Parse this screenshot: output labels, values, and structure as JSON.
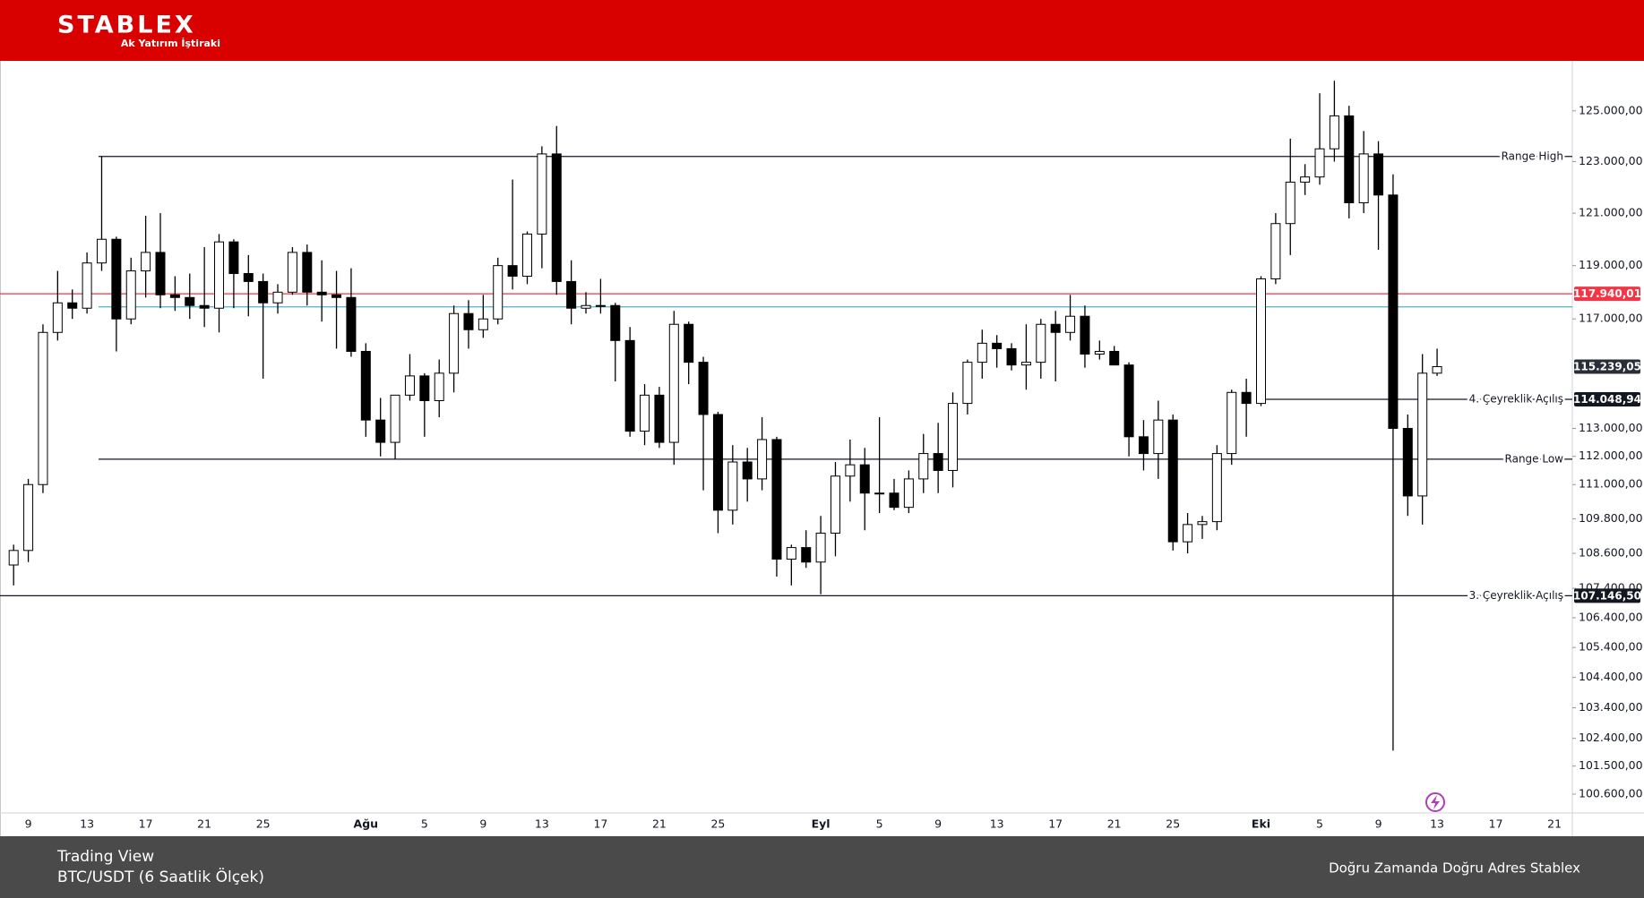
{
  "header": {
    "logo": "STABLEX",
    "tagline": "Ak Yatırım İştiraki"
  },
  "footer": {
    "source": "Trading View",
    "instrument": "BTC/USDT (6 Saatlik Ölçek)",
    "slogan": "Doğru Zamanda Doğru Adres Stablex"
  },
  "chart_data": {
    "type": "candlestick",
    "log_scale": true,
    "grid": false,
    "categories": [
      null,
      "9",
      null,
      null,
      null,
      "13",
      null,
      null,
      null,
      "17",
      null,
      null,
      null,
      "21",
      null,
      null,
      null,
      "25",
      null,
      null,
      null,
      null,
      null,
      null,
      "Ağu",
      null,
      null,
      null,
      "5",
      null,
      null,
      null,
      "9",
      null,
      null,
      null,
      "13",
      null,
      null,
      null,
      "17",
      null,
      null,
      null,
      "21",
      null,
      null,
      null,
      "25",
      null,
      null,
      null,
      null,
      null,
      null,
      "Eyl",
      null,
      null,
      null,
      "5",
      null,
      null,
      null,
      "9",
      null,
      null,
      null,
      "13",
      null,
      null,
      null,
      "17",
      null,
      null,
      null,
      "21",
      null,
      null,
      null,
      "25",
      null,
      null,
      null,
      null,
      null,
      "Eki",
      null,
      null,
      null,
      "5",
      null,
      null,
      null,
      "9",
      null,
      null,
      null,
      "13",
      null,
      null,
      null,
      "17",
      null,
      null,
      null,
      "21",
      null
    ],
    "open": [
      108200,
      108700,
      111000,
      116500,
      117600,
      117400,
      119100,
      120000,
      117000,
      118800,
      119500,
      117900,
      117800,
      117500,
      117400,
      119900,
      118700,
      118400,
      117600,
      118000,
      119500,
      118000,
      117900,
      117800,
      115800,
      113300,
      112500,
      114200,
      114900,
      114000,
      115000,
      117200,
      116600,
      117000,
      119000,
      118600,
      120200,
      123300,
      118400,
      117400,
      117500,
      117500,
      116200,
      112900,
      114200,
      112500,
      116800,
      115400,
      113500,
      110100,
      111800,
      111200,
      112600,
      108400,
      108800,
      108300,
      109300,
      111300,
      111700,
      110700,
      110700,
      110200,
      111200,
      112100,
      111500,
      113900,
      115400,
      116100,
      115900,
      115300,
      115400,
      116800,
      116500,
      117100,
      115700,
      115800,
      115300,
      112700,
      112100,
      113300,
      109000,
      109600,
      109700,
      112100,
      114300,
      113900,
      118500,
      120600,
      122200,
      122400,
      123500,
      124800,
      121400,
      123300,
      121700,
      113000,
      110600,
      115000,
      null,
      null,
      null,
      null,
      null,
      null,
      null,
      null,
      null
    ],
    "high": [
      108900,
      111200,
      116800,
      118800,
      118100,
      119500,
      123200,
      120100,
      119300,
      120900,
      121000,
      118600,
      118700,
      119700,
      120200,
      120000,
      119400,
      118700,
      118300,
      119700,
      119800,
      119200,
      118800,
      118900,
      116100,
      114100,
      114200,
      115700,
      115000,
      115500,
      117500,
      117700,
      117900,
      119300,
      122300,
      120300,
      123600,
      124400,
      119200,
      118000,
      118500,
      117600,
      116700,
      114600,
      114500,
      117300,
      116900,
      115600,
      113600,
      112400,
      112300,
      113400,
      112700,
      108900,
      109400,
      109900,
      111800,
      112600,
      112300,
      113400,
      111200,
      111500,
      112800,
      113200,
      114300,
      115500,
      116600,
      116400,
      116100,
      116800,
      117000,
      117300,
      117900,
      117500,
      116200,
      116000,
      115400,
      113300,
      114000,
      113500,
      110000,
      109900,
      112400,
      114400,
      114800,
      118600,
      121000,
      123900,
      122900,
      125700,
      126200,
      125200,
      124200,
      123800,
      122500,
      113500,
      115700,
      115900,
      null,
      null,
      null,
      null,
      null,
      null,
      null,
      null,
      null
    ],
    "low": [
      107500,
      108300,
      110700,
      116200,
      117000,
      117200,
      118800,
      115800,
      116800,
      117800,
      117400,
      117300,
      117000,
      116700,
      116500,
      117400,
      117100,
      114800,
      117200,
      117900,
      117500,
      116900,
      115900,
      115600,
      112700,
      112000,
      111900,
      114000,
      112700,
      113400,
      114300,
      115900,
      116300,
      116800,
      118100,
      118300,
      118900,
      117900,
      116800,
      117200,
      117200,
      114700,
      112700,
      112400,
      112300,
      111700,
      114600,
      110800,
      109300,
      109600,
      110400,
      110800,
      107800,
      107500,
      108100,
      107200,
      108500,
      110400,
      109400,
      110000,
      110100,
      110000,
      110700,
      110700,
      110900,
      113500,
      114800,
      115200,
      115100,
      114400,
      114800,
      114700,
      116200,
      115200,
      115500,
      115300,
      112000,
      111500,
      111200,
      108700,
      108600,
      109100,
      109400,
      111700,
      112700,
      113800,
      118300,
      119400,
      121700,
      122100,
      123000,
      120800,
      121000,
      119600,
      102000,
      109900,
      109600,
      114900,
      null,
      null,
      null,
      null,
      null,
      null,
      null,
      null,
      null
    ],
    "close": [
      108700,
      111000,
      116500,
      117600,
      117400,
      119100,
      120000,
      117000,
      118800,
      119500,
      117900,
      117800,
      117500,
      117400,
      119900,
      118700,
      118400,
      117600,
      118000,
      119500,
      118000,
      117900,
      117800,
      115800,
      113300,
      112500,
      114200,
      114900,
      114000,
      115000,
      117200,
      116600,
      117000,
      119000,
      118600,
      120200,
      123300,
      118400,
      117400,
      117500,
      117500,
      116200,
      112900,
      114200,
      112500,
      116800,
      115400,
      113500,
      110100,
      111800,
      111200,
      112600,
      108400,
      108800,
      108300,
      109300,
      111300,
      111700,
      110700,
      110700,
      110200,
      111200,
      112100,
      111500,
      113900,
      115400,
      116100,
      115900,
      115300,
      115400,
      116800,
      116500,
      117100,
      115700,
      115800,
      115300,
      112700,
      112100,
      113300,
      109000,
      109600,
      109700,
      112100,
      114300,
      113900,
      118500,
      120600,
      122200,
      122400,
      123500,
      124800,
      121400,
      123300,
      121700,
      113000,
      110600,
      115000,
      115239.05,
      null,
      null,
      null,
      null,
      null,
      null,
      null,
      null,
      null
    ],
    "ylim": [
      100000,
      127000
    ],
    "yticks": [
      {
        "value": 100600,
        "label": "100.600,00"
      },
      {
        "value": 101500,
        "label": "101.500,00"
      },
      {
        "value": 102400,
        "label": "102.400,00"
      },
      {
        "value": 103400,
        "label": "103.400,00"
      },
      {
        "value": 104400,
        "label": "104.400,00"
      },
      {
        "value": 105400,
        "label": "105.400,00"
      },
      {
        "value": 106400,
        "label": "106.400,00"
      },
      {
        "value": 107400,
        "label": "107.400,00"
      },
      {
        "value": 108600,
        "label": "108.600,00"
      },
      {
        "value": 109800,
        "label": "109.800,00"
      },
      {
        "value": 111000,
        "label": "111.000,00"
      },
      {
        "value": 112000,
        "label": "112.000,00"
      },
      {
        "value": 113000,
        "label": "113.000,00"
      },
      {
        "value": 117000,
        "label": "117.000,00"
      },
      {
        "value": 119000,
        "label": "119.000,00"
      },
      {
        "value": 121000,
        "label": "121.000,00"
      },
      {
        "value": 123000,
        "label": "123.000,00"
      },
      {
        "value": 125000,
        "label": "125.000,00"
      }
    ],
    "levels": [
      {
        "label": "Range High",
        "value": 123200,
        "color": "#131722"
      },
      {
        "label": "Range Low",
        "value": 111900,
        "color": "#131722"
      },
      {
        "label": "4. Çeyreklik Açılış",
        "value": 114048.94,
        "value_label": "114.048,94",
        "color": "#131722"
      },
      {
        "label": "3. Çeyreklik Açılış",
        "value": 107146.5,
        "value_label": "107.146,50",
        "color": "#131722"
      },
      {
        "value": 117940.01,
        "value_label": "117.940,01",
        "color": "#f23645"
      },
      {
        "value": 117450,
        "color": "#4fb3c9"
      }
    ],
    "last_price": {
      "value": 115239.05,
      "label": "115.239,05",
      "color": "#2a2e39"
    }
  }
}
